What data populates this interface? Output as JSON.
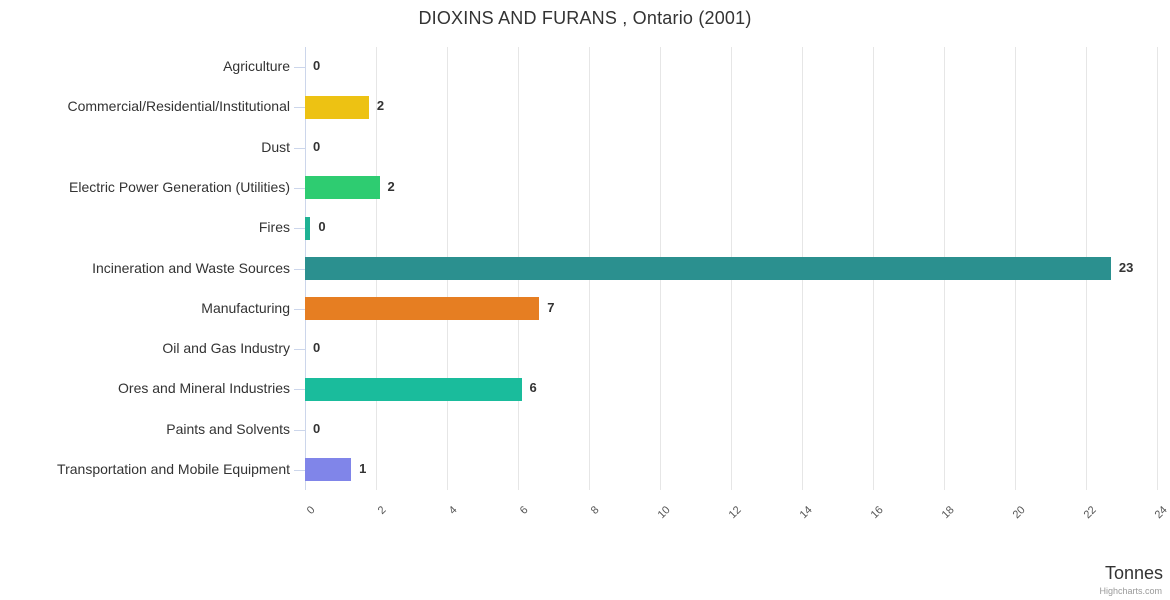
{
  "title": "DIOXINS AND FURANS , Ontario (2001)",
  "credits_label": "Highcharts.com",
  "chart_data": {
    "type": "bar",
    "orientation": "horizontal",
    "title": "DIOXINS AND FURANS , Ontario (2001)",
    "categories": [
      "Agriculture",
      "Commercial/Residential/Institutional",
      "Dust",
      "Electric Power Generation (Utilities)",
      "Fires",
      "Incineration and Waste Sources",
      "Manufacturing",
      "Oil and Gas Industry",
      "Ores and Mineral Industries",
      "Paints and Solvents",
      "Transportation and Mobile Equipment"
    ],
    "values": [
      0,
      2,
      0,
      2,
      0,
      23,
      7,
      0,
      6,
      0,
      1
    ],
    "bar_lengths_tonnes": [
      0,
      1.8,
      0,
      2.1,
      0.15,
      22.7,
      6.6,
      0,
      6.1,
      0,
      1.3
    ],
    "bar_colors": [
      null,
      "#EDC213",
      null,
      "#2ECC71",
      "#1FB294",
      "#2B908F",
      "#E67E22",
      null,
      "#1ABC9C",
      null,
      "#8085E9"
    ],
    "data_labels": [
      "0",
      "2",
      "0",
      "2",
      "0",
      "23",
      "7",
      "0",
      "6",
      "0",
      "1"
    ],
    "value_axis": {
      "title": "Tonnes",
      "min": 0,
      "max": 24,
      "tick_interval": 2,
      "ticks": [
        0,
        2,
        4,
        6,
        8,
        10,
        12,
        14,
        16,
        18,
        20,
        22,
        24
      ],
      "tick_label_rotation": -45,
      "grid": true
    },
    "category_axis": {
      "title": "",
      "position": "left"
    },
    "legend": false,
    "style": {
      "text_color": "#333333",
      "tick_label_color": "#555555",
      "grid_color": "#e6e6e6",
      "axis_line_color": "#ccd6eb",
      "credits_color": "#999999",
      "background": "#ffffff"
    }
  }
}
